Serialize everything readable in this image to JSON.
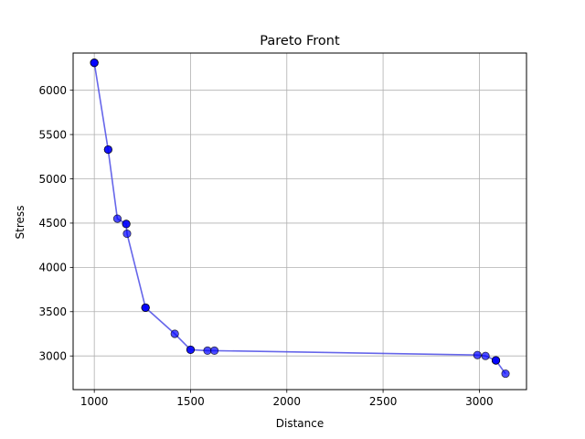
{
  "chart_data": {
    "type": "scatter",
    "title": "Pareto Front",
    "xlabel": "Distance",
    "ylabel": "Stress",
    "xlim": [
      890,
      3245
    ],
    "ylim": [
      2620,
      6420
    ],
    "xticks": [
      1000,
      1500,
      2000,
      2500,
      3000
    ],
    "yticks": [
      3000,
      3500,
      4000,
      4500,
      5000,
      5500,
      6000
    ],
    "grid": true,
    "points": [
      {
        "x": 1000,
        "y": 6310
      },
      {
        "x": 1000,
        "y": 6310
      },
      {
        "x": 1000,
        "y": 6310
      },
      {
        "x": 1072,
        "y": 5330
      },
      {
        "x": 1072,
        "y": 5330
      },
      {
        "x": 1120,
        "y": 4550
      },
      {
        "x": 1166,
        "y": 4490
      },
      {
        "x": 1166,
        "y": 4490
      },
      {
        "x": 1170,
        "y": 4380
      },
      {
        "x": 1266,
        "y": 3545
      },
      {
        "x": 1266,
        "y": 3545
      },
      {
        "x": 1266,
        "y": 3545
      },
      {
        "x": 1418,
        "y": 3250
      },
      {
        "x": 1500,
        "y": 3070
      },
      {
        "x": 1500,
        "y": 3070
      },
      {
        "x": 1588,
        "y": 3060
      },
      {
        "x": 1624,
        "y": 3060
      },
      {
        "x": 2990,
        "y": 3010
      },
      {
        "x": 3032,
        "y": 3000
      },
      {
        "x": 3086,
        "y": 2950
      },
      {
        "x": 3086,
        "y": 2950
      },
      {
        "x": 3086,
        "y": 2950
      },
      {
        "x": 3136,
        "y": 2800
      }
    ],
    "front_line": [
      {
        "x": 1000,
        "y": 6310
      },
      {
        "x": 1072,
        "y": 5330
      },
      {
        "x": 1120,
        "y": 4550
      },
      {
        "x": 1166,
        "y": 4490
      },
      {
        "x": 1170,
        "y": 4380
      },
      {
        "x": 1266,
        "y": 3545
      },
      {
        "x": 1418,
        "y": 3250
      },
      {
        "x": 1500,
        "y": 3070
      },
      {
        "x": 1588,
        "y": 3060
      },
      {
        "x": 1624,
        "y": 3060
      },
      {
        "x": 2990,
        "y": 3010
      },
      {
        "x": 3032,
        "y": 3000
      },
      {
        "x": 3086,
        "y": 2950
      },
      {
        "x": 3136,
        "y": 2800
      }
    ],
    "colors": {
      "point_fill": "#0000ff",
      "point_edge": "#000000",
      "line": "#4b4be6",
      "grid": "#b0b0b0",
      "axes": "#000000"
    }
  }
}
